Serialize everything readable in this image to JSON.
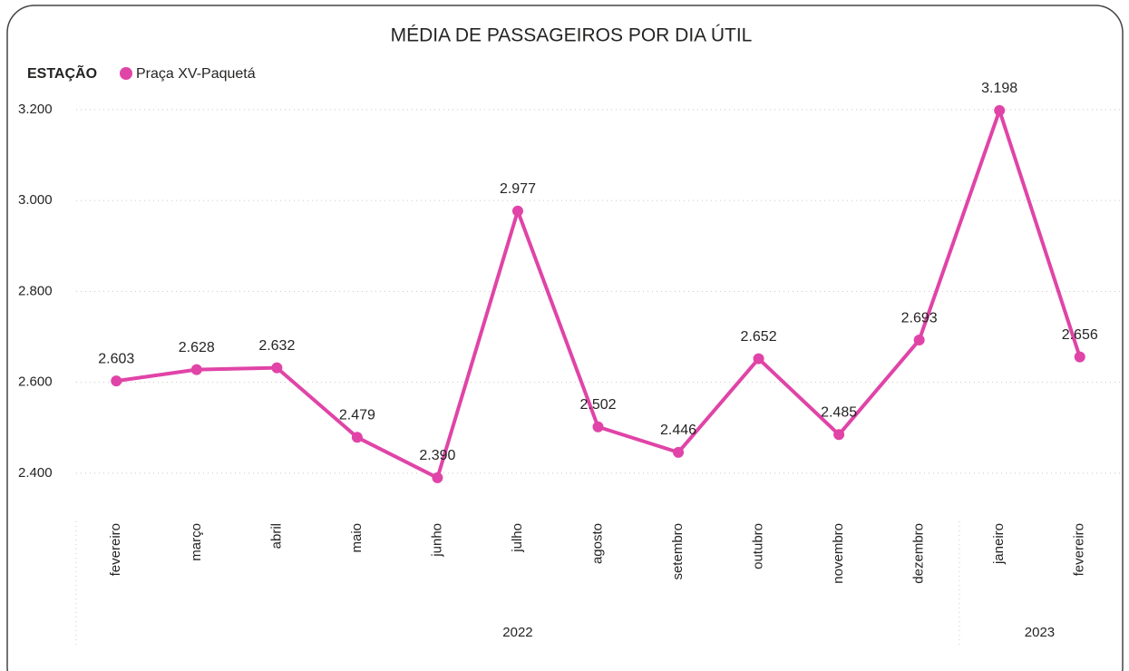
{
  "chart_data": {
    "type": "line",
    "title": "MÉDIA DE PASSAGEIROS POR DIA ÚTIL",
    "legend_title": "ESTAÇÃO",
    "categories": [
      "fevereiro",
      "março",
      "abril",
      "maio",
      "junho",
      "julho",
      "agosto",
      "setembro",
      "outubro",
      "novembro",
      "dezembro",
      "janeiro",
      "fevereiro"
    ],
    "category_groups": [
      {
        "label": "2022",
        "count": 11
      },
      {
        "label": "2023",
        "count": 2
      }
    ],
    "series": [
      {
        "name": "Praça XV-Paquetá",
        "color": "#e044a7",
        "values": [
          2603,
          2628,
          2632,
          2479,
          2390,
          2977,
          2502,
          2446,
          2652,
          2485,
          2693,
          3198,
          2656
        ],
        "value_labels": [
          "2.603",
          "2.628",
          "2.632",
          "2.479",
          "2.390",
          "2.977",
          "2.502",
          "2.446",
          "2.652",
          "2.485",
          "2.693",
          "3.198",
          "2.656"
        ]
      }
    ],
    "ylim": [
      2320,
      3220
    ],
    "yticks": [
      {
        "value": 2400,
        "label": "2.400"
      },
      {
        "value": 2600,
        "label": "2.600"
      },
      {
        "value": 2800,
        "label": "2.800"
      },
      {
        "value": 3000,
        "label": "3.000"
      },
      {
        "value": 3200,
        "label": "3.200"
      }
    ],
    "grid": true
  }
}
